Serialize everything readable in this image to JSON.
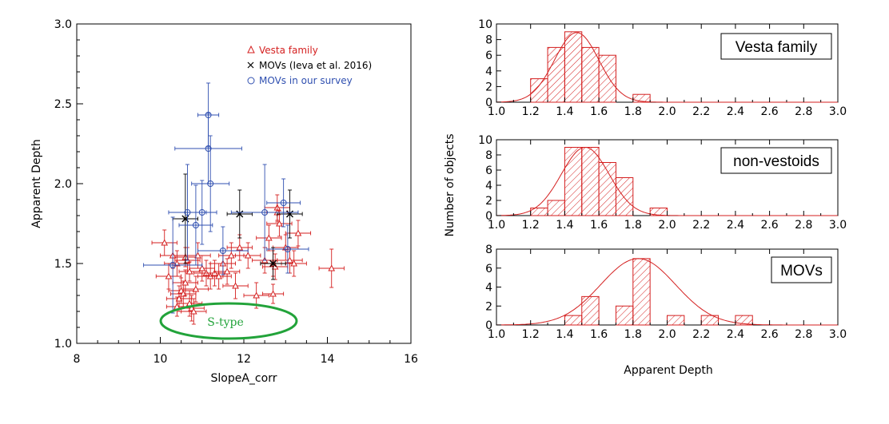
{
  "colors": {
    "vesta": "#d41f1f",
    "movs_ieva": "#000000",
    "movs_survey": "#2f4fb0",
    "stype": "#22a33a",
    "axis": "#000000"
  },
  "chart_data": [
    {
      "type": "scatter",
      "xlabel": "SlopeA_corr",
      "ylabel": "Apparent Depth",
      "xlim": [
        8,
        16
      ],
      "ylim": [
        1.0,
        3.0
      ],
      "xticks": [
        "8",
        "10",
        "12",
        "14",
        "16"
      ],
      "yticks": [
        "1.0",
        "1.5",
        "2.0",
        "2.5",
        "3.0"
      ],
      "legend": [
        "Vesta family",
        "MOVs (Ieva et al. 2016)",
        "MOVs in our survey"
      ],
      "annotation": "S-type",
      "series": [
        {
          "name": "Vesta family",
          "marker": "triangle",
          "x": [
            10.1,
            10.2,
            10.3,
            10.4,
            10.45,
            10.5,
            10.55,
            10.6,
            10.65,
            10.7,
            10.75,
            10.8,
            10.85,
            10.9,
            11.0,
            11.1,
            11.2,
            11.3,
            11.4,
            11.5,
            11.6,
            11.7,
            11.8,
            11.9,
            12.1,
            12.3,
            12.5,
            12.6,
            12.7,
            12.75,
            12.8,
            12.85,
            13.0,
            13.1,
            13.2,
            13.3,
            14.1,
            10.4,
            10.6,
            10.7,
            12.7,
            12.8
          ],
          "y": [
            1.63,
            1.42,
            1.55,
            1.5,
            1.28,
            1.33,
            1.31,
            1.38,
            1.52,
            1.25,
            1.22,
            1.2,
            1.34,
            1.55,
            1.47,
            1.44,
            1.42,
            1.44,
            1.42,
            1.5,
            1.45,
            1.55,
            1.36,
            1.6,
            1.55,
            1.3,
            1.52,
            1.66,
            1.5,
            1.48,
            1.85,
            1.75,
            1.6,
            1.52,
            1.5,
            1.69,
            1.47,
            1.23,
            1.54,
            1.45,
            1.31,
            1.82
          ],
          "xerr": [
            0.3,
            0.3,
            0.3,
            0.3,
            0.3,
            0.3,
            0.3,
            0.3,
            0.3,
            0.3,
            0.3,
            0.3,
            0.3,
            0.3,
            0.3,
            0.3,
            0.3,
            0.3,
            0.3,
            0.3,
            0.3,
            0.3,
            0.3,
            0.3,
            0.3,
            0.3,
            0.3,
            0.3,
            0.3,
            0.3,
            0.3,
            0.3,
            0.3,
            0.3,
            0.3,
            0.3,
            0.3,
            0.25,
            0.25,
            0.25,
            0.25,
            0.25
          ],
          "yerr": [
            0.08,
            0.08,
            0.08,
            0.08,
            0.08,
            0.08,
            0.08,
            0.08,
            0.08,
            0.08,
            0.08,
            0.08,
            0.08,
            0.08,
            0.08,
            0.08,
            0.08,
            0.08,
            0.08,
            0.08,
            0.08,
            0.08,
            0.08,
            0.08,
            0.08,
            0.08,
            0.08,
            0.08,
            0.08,
            0.08,
            0.08,
            0.08,
            0.08,
            0.08,
            0.08,
            0.08,
            0.12,
            0.06,
            0.06,
            0.06,
            0.06,
            0.06
          ]
        },
        {
          "name": "MOVs (Ieva et al. 2016)",
          "marker": "x",
          "x": [
            10.6,
            11.9,
            12.7,
            13.1
          ],
          "y": [
            1.78,
            1.81,
            1.5,
            1.81
          ],
          "xerr": [
            0.3,
            0.3,
            0.3,
            0.3
          ],
          "yerr": [
            0.28,
            0.15,
            0.1,
            0.15
          ]
        },
        {
          "name": "MOVs in our survey",
          "marker": "circle",
          "x": [
            10.3,
            10.65,
            10.85,
            11.0,
            11.15,
            11.15,
            11.2,
            11.5,
            12.5,
            12.95,
            13.05
          ],
          "y": [
            1.49,
            1.82,
            1.74,
            1.82,
            2.43,
            2.22,
            2.0,
            1.58,
            1.82,
            1.88,
            1.59
          ],
          "xerr": [
            0.7,
            0.45,
            0.4,
            0.35,
            0.25,
            0.8,
            0.45,
            0.6,
            0.8,
            0.4,
            0.5
          ],
          "yerr": [
            0.3,
            0.3,
            0.25,
            0.2,
            0.2,
            0.22,
            0.3,
            0.15,
            0.3,
            0.15,
            0.15
          ]
        }
      ]
    },
    {
      "type": "bar",
      "title": "Vesta family",
      "bin_edges": [
        1.2,
        1.3,
        1.4,
        1.5,
        1.6,
        1.7,
        1.8,
        1.9
      ],
      "values": [
        3,
        7,
        9,
        7,
        6,
        0,
        1
      ],
      "xlim": [
        1.0,
        3.0
      ],
      "ylim": [
        0,
        10
      ],
      "yticks": [
        "0",
        "2",
        "4",
        "6",
        "8",
        "10"
      ],
      "gaussian": {
        "mean": 1.47,
        "sigma": 0.13,
        "peak": 8.9
      }
    },
    {
      "type": "bar",
      "title": "non-vestoids",
      "bin_edges": [
        1.2,
        1.3,
        1.4,
        1.5,
        1.6,
        1.7,
        1.8,
        1.9,
        2.0
      ],
      "values": [
        1,
        2,
        9,
        9,
        7,
        5,
        0,
        1
      ],
      "xlim": [
        1.0,
        3.0
      ],
      "ylim": [
        0,
        10
      ],
      "yticks": [
        "0",
        "2",
        "4",
        "6",
        "8",
        "10"
      ],
      "gaussian": {
        "mean": 1.52,
        "sigma": 0.14,
        "peak": 9.0
      }
    },
    {
      "type": "bar",
      "title": "MOVs",
      "bin_edges": [
        1.4,
        1.5,
        1.6,
        1.7,
        1.8,
        1.9,
        2.0,
        2.1,
        2.2,
        2.3,
        2.4,
        2.5
      ],
      "values": [
        1,
        3,
        0,
        2,
        7,
        0,
        1,
        0,
        1,
        0,
        1
      ],
      "xlim": [
        1.0,
        3.0
      ],
      "ylim": [
        0,
        8
      ],
      "yticks": [
        "0",
        "2",
        "4",
        "6",
        "8"
      ],
      "gaussian": {
        "mean": 1.83,
        "sigma": 0.22,
        "peak": 7.0
      }
    }
  ],
  "histogram_axes": {
    "xticks": [
      "1.0",
      "1.2",
      "1.4",
      "1.6",
      "1.8",
      "2.0",
      "2.2",
      "2.4",
      "2.6",
      "2.8",
      "3.0"
    ],
    "xlabel": "Apparent Depth",
    "ylabel": "Number of objects"
  }
}
